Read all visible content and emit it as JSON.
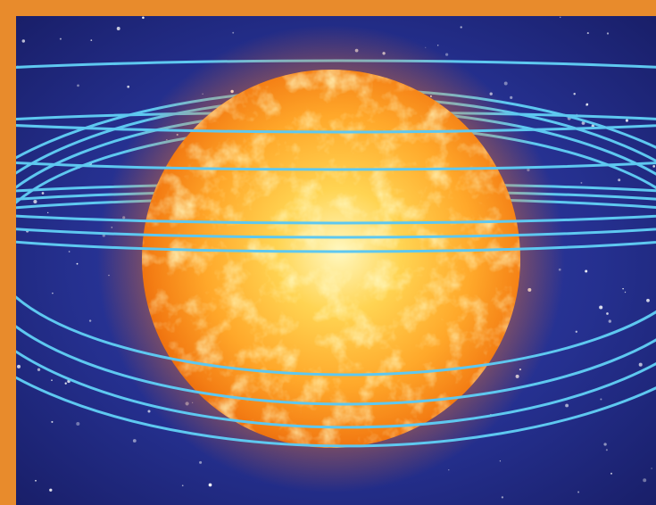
{
  "scene": {
    "subject": "sun-with-orbits",
    "colors": {
      "frame": "#e88b2c",
      "space_deep": "#1a1f6e",
      "space_mid": "#2a33a0",
      "sun_core": "#fff3a0",
      "sun_mid": "#ffb52a",
      "sun_edge": "#f07a12",
      "glow": "#ff9a2a",
      "orbit": "#5ec8f0",
      "star": "#ffffff"
    }
  }
}
